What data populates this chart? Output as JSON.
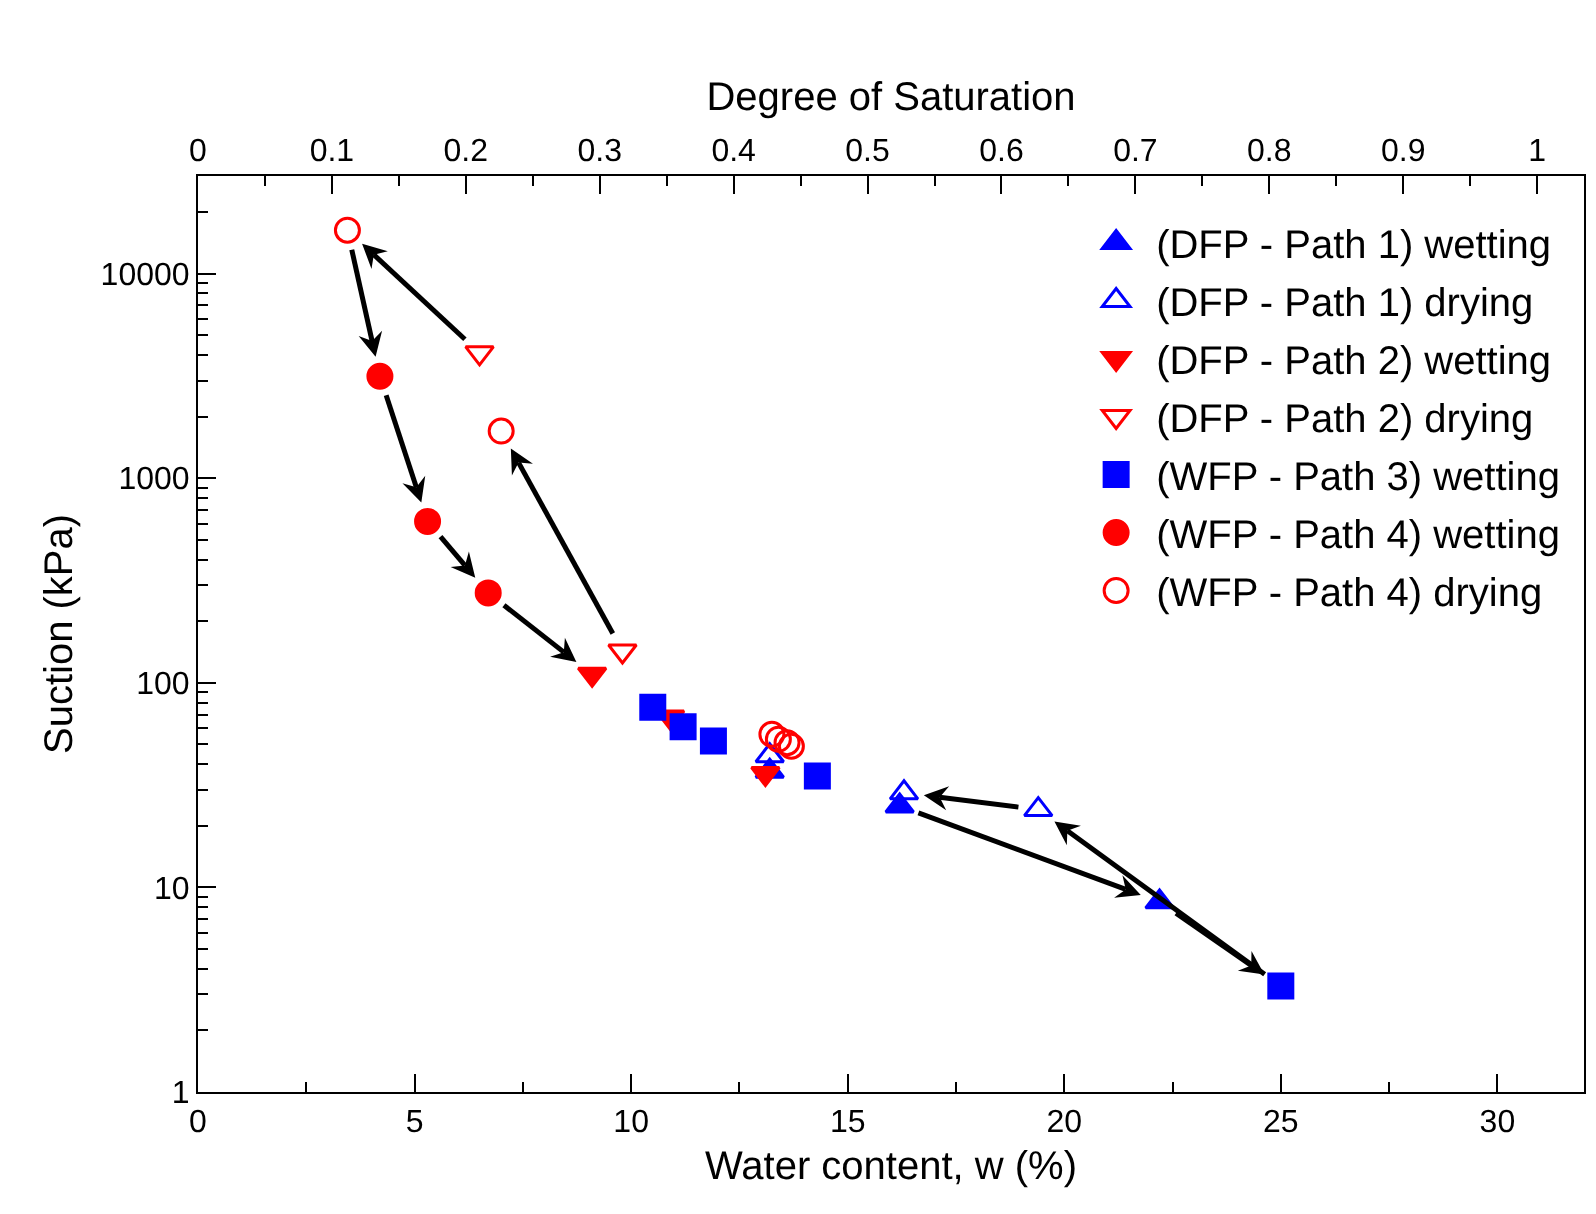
{
  "chart_data": {
    "type": "scatter",
    "xlabel": "Water content, w (%)",
    "ylabel": "Suction (kPa)",
    "x2label": "Degree of Saturation",
    "xlim": [
      0,
      32
    ],
    "xticks": [
      0,
      {
        "value": 2.5,
        "label": null
      },
      5,
      {
        "value": 7.5,
        "label": null
      },
      10,
      {
        "value": 12.5,
        "label": null
      },
      15,
      {
        "value": 17.5,
        "label": null
      },
      20,
      {
        "value": 22.5,
        "label": null
      },
      25,
      {
        "value": 27.5,
        "label": null
      },
      30
    ],
    "x2lim": [
      0,
      1.035
    ],
    "x2ticks": [
      0,
      {
        "value": 0.05,
        "label": null
      },
      0.1,
      {
        "value": 0.15,
        "label": null
      },
      0.2,
      {
        "value": 0.25,
        "label": null
      },
      0.3,
      {
        "value": 0.35,
        "label": null
      },
      0.4,
      {
        "value": 0.45,
        "label": null
      },
      0.5,
      {
        "value": 0.55,
        "label": null
      },
      0.6,
      {
        "value": 0.65,
        "label": null
      },
      0.7,
      {
        "value": 0.75,
        "label": null
      },
      0.8,
      {
        "value": 0.85,
        "label": null
      },
      0.9,
      {
        "value": 0.95,
        "label": null
      },
      1
    ],
    "ylim": [
      1,
      30000
    ],
    "yticks": [
      1,
      10,
      100,
      1000,
      10000
    ],
    "log": "y",
    "grid": false,
    "legend": "top right",
    "series": [
      {
        "name": "(DFP - Path 1) wetting",
        "color": "#0000ff",
        "marker": "triangle-up",
        "x": [
          13.2,
          16.2,
          22.2
        ],
        "values": [
          37,
          25,
          8.5
        ]
      },
      {
        "name": "(DFP - Path 1) drying",
        "color": "#0000ff",
        "marker": "triangle-up-open",
        "x": [
          13.2,
          16.3,
          19.4
        ],
        "values": [
          44,
          29,
          24
        ]
      },
      {
        "name": "(DFP - Path 2) wetting",
        "color": "#ff0000",
        "marker": "triangle-down",
        "x": [
          9.1,
          10.9,
          13.1
        ],
        "values": [
          110,
          68,
          36
        ]
      },
      {
        "name": "(DFP - Path 2) drying",
        "color": "#ff0000",
        "marker": "triangle-down-open",
        "x": [
          6.5,
          9.8
        ],
        "values": [
          4100,
          143
        ]
      },
      {
        "name": "(WFP - Path 3) wetting",
        "color": "#0000ff",
        "marker": "square",
        "x": [
          10.5,
          11.2,
          11.9,
          14.3,
          25.0
        ],
        "values": [
          76,
          61,
          52,
          35,
          3.3
        ]
      },
      {
        "name": "(WFP - Path 4) wetting",
        "color": "#ff0000",
        "marker": "circle",
        "x": [
          4.2,
          5.3,
          6.7
        ],
        "values": [
          3150,
          615,
          275
        ]
      },
      {
        "name": "(WFP - Path 4) drying",
        "color": "#ff0000",
        "marker": "circle-open",
        "x": [
          3.45,
          7.0,
          13.25,
          13.4,
          13.6,
          13.7
        ],
        "values": [
          16300,
          1700,
          56,
          53,
          51,
          49
        ]
      }
    ]
  }
}
